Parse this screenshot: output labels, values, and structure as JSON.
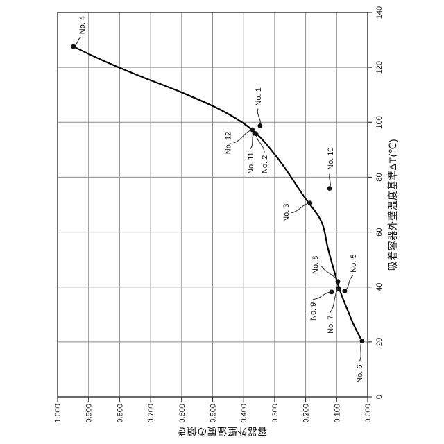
{
  "page": {
    "background": "#ffffff"
  },
  "figure": {
    "kind": "patent-style scatter chart, whole figure rotated 90 degrees counter-clockwise",
    "rotation_deg": -90
  },
  "chart_data": {
    "type": "scatter",
    "title": "",
    "grid": true,
    "legend": "none",
    "x_axis": {
      "title": "吸着容器外壁温度基準ΔT(℃)",
      "min": 0,
      "max": 140,
      "tick_step": 20,
      "tick_labels": [
        "0",
        "20",
        "40",
        "60",
        "80",
        "100",
        "120",
        "140"
      ]
    },
    "y_axis": {
      "title": "容器外壁温度の傾き",
      "min": 0.0,
      "max": 1.0,
      "tick_step": 0.1,
      "tick_labels": [
        "0.000",
        "0.100",
        "0.200",
        "0.300",
        "0.400",
        "0.500",
        "0.600",
        "0.700",
        "0.800",
        "0.900",
        "1.000"
      ]
    },
    "series": [
      {
        "name": "samples",
        "marker": "filled-circle",
        "color": "#111111",
        "points": [
          {
            "label": "No. 1",
            "dt": 98.7,
            "slope": 0.347,
            "label_dx": 42,
            "label_dy": -3
          },
          {
            "label": "No. 2",
            "dt": 95.8,
            "slope": 0.36,
            "label_dx": -44,
            "label_dy": 12
          },
          {
            "label": "No. 3",
            "dt": 70.6,
            "slope": 0.186,
            "label_dx": -14,
            "label_dy": -35
          },
          {
            "label": "No. 4",
            "dt": 127.6,
            "slope": 0.949,
            "label_dx": 31,
            "label_dy": 12
          },
          {
            "label": "No. 5",
            "dt": 38.5,
            "slope": 0.074,
            "label_dx": 40,
            "label_dy": 12
          },
          {
            "label": "No. 6",
            "dt": 20.3,
            "slope": 0.018,
            "label_dx": -47,
            "label_dy": -4
          },
          {
            "label": "No. 7",
            "dt": 39.5,
            "slope": 0.094,
            "label_dx": -52,
            "label_dy": -12
          },
          {
            "label": "No. 8",
            "dt": 42.0,
            "slope": 0.096,
            "label_dx": 24,
            "label_dy": -33
          },
          {
            "label": "No. 9",
            "dt": 38.2,
            "slope": 0.116,
            "label_dx": -28,
            "label_dy": -27
          },
          {
            "label": "No. 10",
            "dt": 75.9,
            "slope": 0.123,
            "label_dx": 43,
            "label_dy": 1
          },
          {
            "label": "No. 11",
            "dt": 96.0,
            "slope": 0.365,
            "label_dx": -43,
            "label_dy": -6
          },
          {
            "label": "No. 12",
            "dt": 97.3,
            "slope": 0.372,
            "label_dx": -19,
            "label_dy": -35
          }
        ]
      }
    ],
    "trend_curve": {
      "description": "smooth monotone curve through samples from No.6 to No.4",
      "points": [
        [
          20.3,
          0.018
        ],
        [
          26,
          0.044
        ],
        [
          33,
          0.07
        ],
        [
          39.5,
          0.092
        ],
        [
          44.6,
          0.105
        ],
        [
          54,
          0.128
        ],
        [
          64,
          0.15
        ],
        [
          73.4,
          0.208
        ],
        [
          86,
          0.284
        ],
        [
          96.5,
          0.365
        ],
        [
          104,
          0.465
        ],
        [
          110.9,
          0.6
        ],
        [
          116.4,
          0.725
        ],
        [
          122.3,
          0.85
        ],
        [
          127.6,
          0.949
        ]
      ]
    },
    "colors": {
      "curve": "#000000",
      "marker": "#111111",
      "grid": "#8c8c8c",
      "frame": "#383838",
      "leader": "#333333",
      "text": "#111111"
    }
  }
}
